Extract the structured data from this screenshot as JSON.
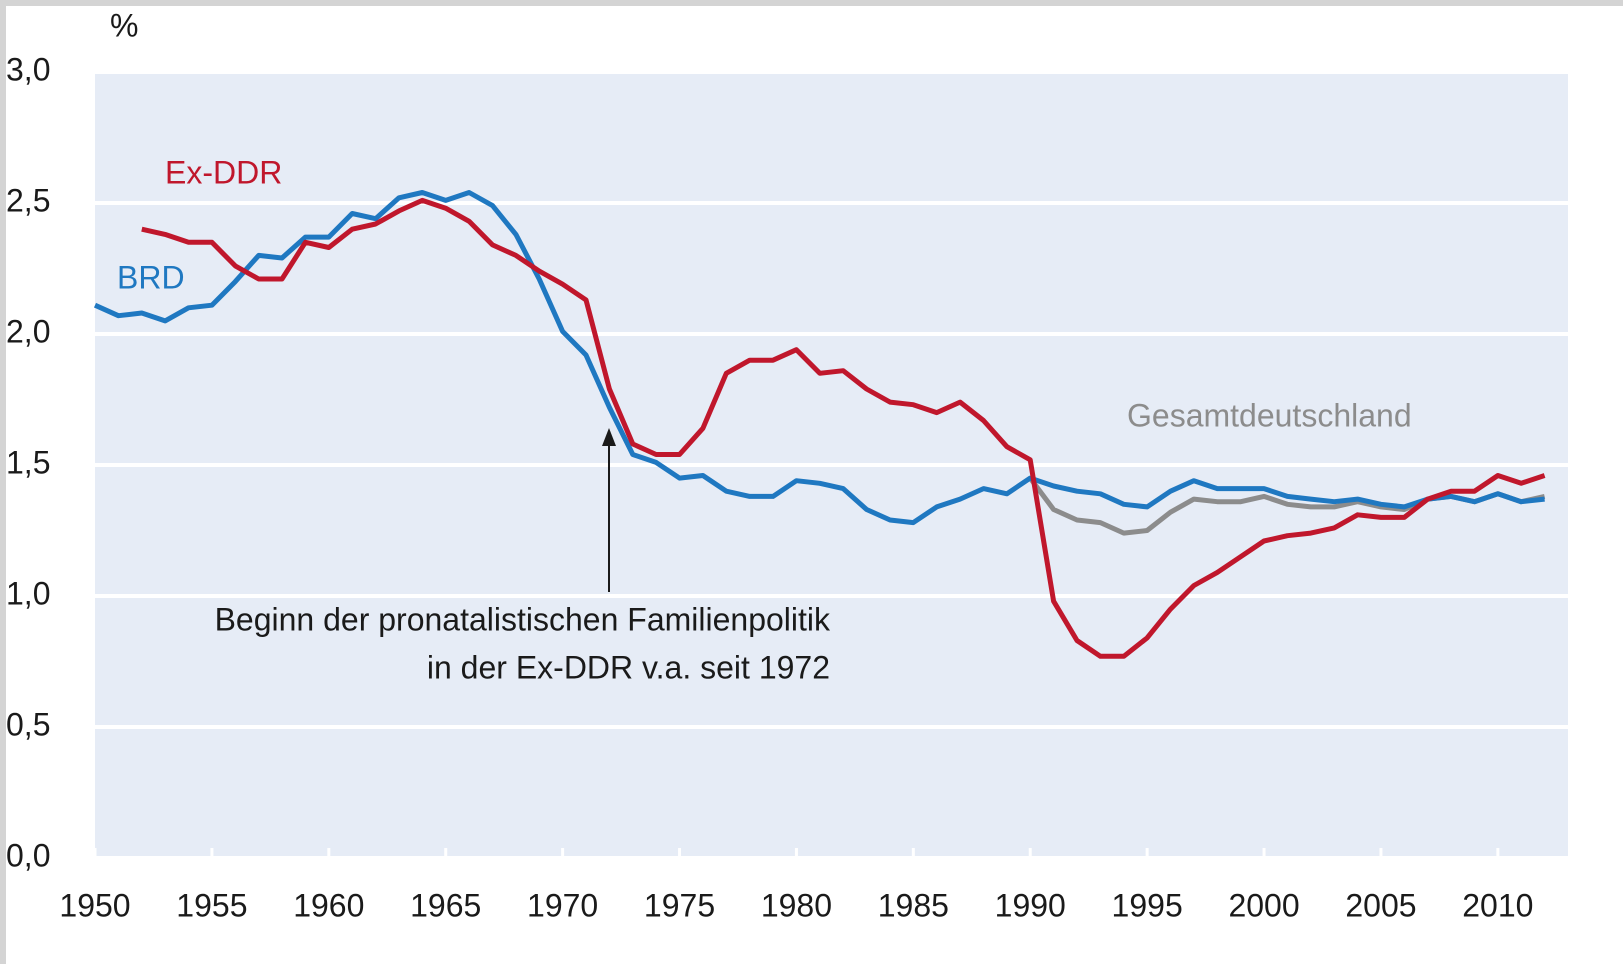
{
  "chart_data": {
    "type": "line",
    "unit_label": "%",
    "x": [
      1950,
      1951,
      1952,
      1953,
      1954,
      1955,
      1956,
      1957,
      1958,
      1959,
      1960,
      1961,
      1962,
      1963,
      1964,
      1965,
      1966,
      1967,
      1968,
      1969,
      1970,
      1971,
      1972,
      1973,
      1974,
      1975,
      1976,
      1977,
      1978,
      1979,
      1980,
      1981,
      1982,
      1983,
      1984,
      1985,
      1986,
      1987,
      1988,
      1989,
      1990,
      1991,
      1992,
      1993,
      1994,
      1995,
      1996,
      1997,
      1998,
      1999,
      2000,
      2001,
      2002,
      2003,
      2004,
      2005,
      2006,
      2007,
      2008,
      2009,
      2010,
      2011,
      2012
    ],
    "series": [
      {
        "name": "Gesamtdeutschland",
        "color": "#8c8c8c",
        "values": [
          null,
          null,
          null,
          null,
          null,
          null,
          null,
          null,
          null,
          null,
          null,
          null,
          null,
          null,
          null,
          null,
          null,
          null,
          null,
          null,
          null,
          null,
          null,
          null,
          null,
          null,
          null,
          null,
          null,
          null,
          null,
          null,
          null,
          null,
          null,
          null,
          null,
          null,
          null,
          null,
          1.45,
          1.33,
          1.29,
          1.28,
          1.24,
          1.25,
          1.32,
          1.37,
          1.36,
          1.36,
          1.38,
          1.35,
          1.34,
          1.34,
          1.36,
          1.34,
          1.33,
          1.37,
          1.38,
          1.36,
          1.39,
          1.36,
          1.38
        ]
      },
      {
        "name": "BRD",
        "color": "#1f78c1",
        "values": [
          2.11,
          2.07,
          2.08,
          2.05,
          2.1,
          2.11,
          2.2,
          2.3,
          2.29,
          2.37,
          2.37,
          2.46,
          2.44,
          2.52,
          2.54,
          2.51,
          2.54,
          2.49,
          2.38,
          2.21,
          2.01,
          1.92,
          1.72,
          1.54,
          1.51,
          1.45,
          1.46,
          1.4,
          1.38,
          1.38,
          1.44,
          1.43,
          1.41,
          1.33,
          1.29,
          1.28,
          1.34,
          1.37,
          1.41,
          1.39,
          1.45,
          1.42,
          1.4,
          1.39,
          1.35,
          1.34,
          1.4,
          1.44,
          1.41,
          1.41,
          1.41,
          1.38,
          1.37,
          1.36,
          1.37,
          1.35,
          1.34,
          1.37,
          1.38,
          1.36,
          1.39,
          1.36,
          1.37
        ]
      },
      {
        "name": "Ex-DDR",
        "color": "#c0172c",
        "values": [
          null,
          null,
          2.4,
          2.38,
          2.35,
          2.35,
          2.26,
          2.21,
          2.21,
          2.35,
          2.33,
          2.4,
          2.42,
          2.47,
          2.51,
          2.48,
          2.43,
          2.34,
          2.3,
          2.24,
          2.19,
          2.13,
          1.79,
          1.58,
          1.54,
          1.54,
          1.64,
          1.85,
          1.9,
          1.9,
          1.94,
          1.85,
          1.86,
          1.79,
          1.74,
          1.73,
          1.7,
          1.74,
          1.67,
          1.57,
          1.52,
          0.98,
          0.83,
          0.77,
          0.77,
          0.84,
          0.95,
          1.04,
          1.09,
          1.15,
          1.21,
          1.23,
          1.24,
          1.26,
          1.31,
          1.3,
          1.3,
          1.37,
          1.4,
          1.4,
          1.46,
          1.43,
          1.46
        ]
      }
    ],
    "annotation": [
      "Beginn der pronatalistischen Familienpolitik",
      "in der Ex-DDR v.a. seit 1972"
    ],
    "xlim": [
      1950,
      2013
    ],
    "xticks": [
      1950,
      1955,
      1960,
      1965,
      1970,
      1975,
      1980,
      1985,
      1990,
      1995,
      2000,
      2005,
      2010
    ],
    "ylim": [
      0,
      3
    ],
    "yticks": [
      {
        "value": 0,
        "label": "0,0"
      },
      {
        "value": 0.5,
        "label": "0,5"
      },
      {
        "value": 1,
        "label": "1,0"
      },
      {
        "value": 1.5,
        "label": "1,5"
      },
      {
        "value": 2,
        "label": "2,0"
      },
      {
        "value": 2.5,
        "label": "2,5"
      },
      {
        "value": 3,
        "label": "3,0"
      }
    ],
    "grid": true
  }
}
